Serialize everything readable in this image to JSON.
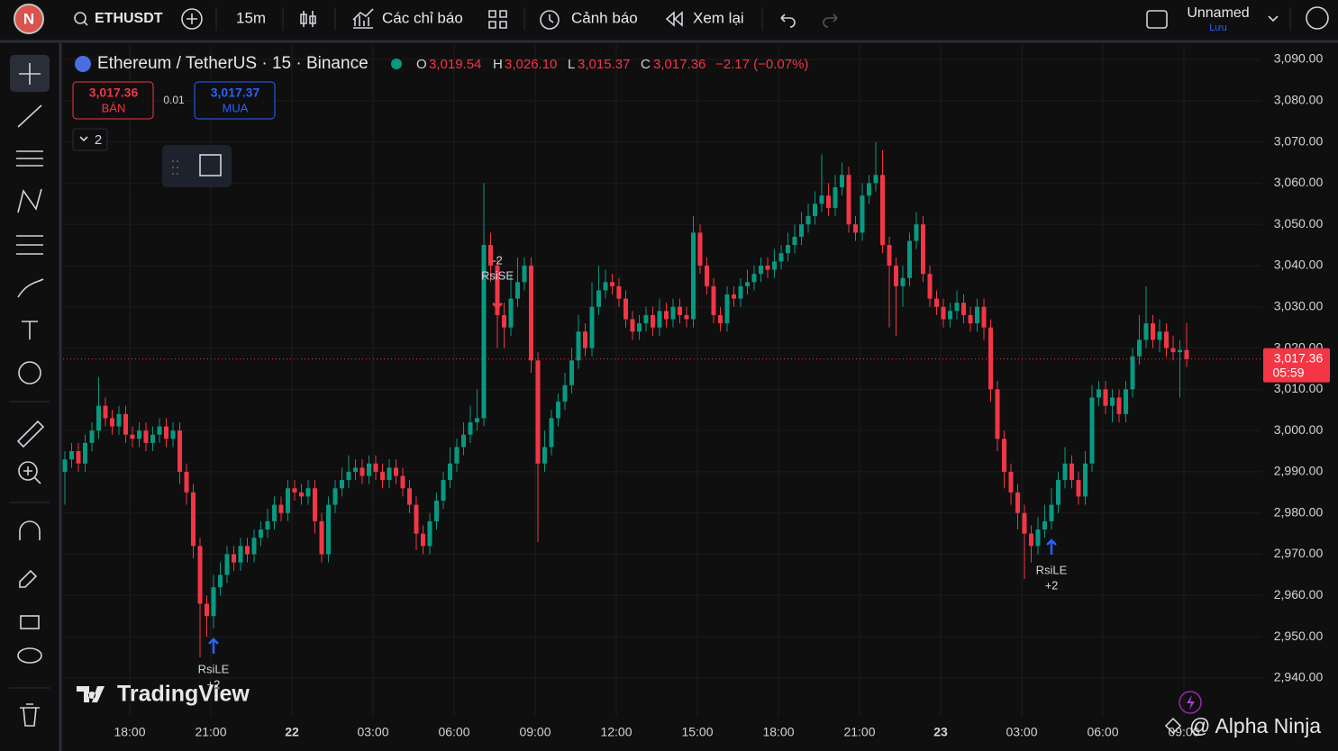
{
  "toolbar": {
    "avatar": "N",
    "symbol": "ETHUSDT",
    "interval": "15m",
    "indicators": "Các chỉ báo",
    "alerts": "Cảnh báo",
    "replay": "Xem lại",
    "layout_name": "Unnamed",
    "save": "Lưu"
  },
  "legend": {
    "title": "Ethereum / TetherUS · 15 · Binance",
    "o_key": "O",
    "o": "3,019.54",
    "h_key": "H",
    "h": "3,026.10",
    "l_key": "L",
    "l": "3,015.37",
    "c_key": "C",
    "c": "3,017.36",
    "change": "−2.17 (−0.07%)"
  },
  "trade": {
    "sell_price": "3,017.36",
    "sell": "BÁN",
    "qty": "0.01",
    "buy_price": "3,017.37",
    "buy": "MUA",
    "collapse": "2"
  },
  "branding": {
    "logo": "TradingView",
    "watermark": "@ Alpha Ninja"
  },
  "chart_data": {
    "type": "candlestick",
    "open": [
      2990,
      2993,
      2995,
      2992,
      2997,
      3000,
      3006,
      3003,
      3001,
      3004,
      2999,
      2998,
      3000,
      2997,
      2999,
      3001,
      2998,
      3000,
      2990,
      2985,
      2972,
      2958,
      2955,
      2962,
      2965,
      2970,
      2968,
      2972,
      2970,
      2974,
      2976,
      2978,
      2982,
      2980,
      2986,
      2985,
      2984,
      2986,
      2978,
      2970,
      2982,
      2986,
      2988,
      2990,
      2991,
      2989,
      2992,
      2990,
      2988,
      2991,
      2989,
      2986,
      2982,
      2975,
      2972,
      2978,
      2983,
      2988,
      2992,
      2996,
      2999,
      3002,
      3003,
      3045,
      3040,
      3028,
      3025,
      3032,
      3036,
      3040,
      3017,
      2992,
      2996,
      3003,
      3007,
      3011,
      3017,
      3024,
      3020,
      3030,
      3034,
      3036,
      3035,
      3032,
      3027,
      3024,
      3026,
      3028,
      3025,
      3029,
      3027,
      3030,
      3028,
      3027,
      3048,
      3040,
      3035,
      3028,
      3026,
      3033,
      3032,
      3035,
      3036,
      3038,
      3040,
      3039,
      3041,
      3043,
      3045,
      3047,
      3050,
      3052,
      3055,
      3057,
      3054,
      3059,
      3062,
      3050,
      3048,
      3057,
      3060,
      3062,
      3045,
      3040,
      3035,
      3037,
      3046,
      3050,
      3038,
      3032,
      3030,
      3027,
      3029,
      3031,
      3028,
      3026,
      3030,
      3025,
      3010,
      2998,
      2990,
      2985,
      2980,
      2975,
      2972,
      2976,
      2978,
      2982,
      2988,
      2992,
      2988,
      2984,
      2992,
      3008,
      3010,
      3006,
      3008,
      3004,
      3010,
      3018,
      3022,
      3026,
      3022,
      3024,
      3020,
      3019,
      3019.54
    ],
    "high": [
      2995,
      2997,
      2997,
      2999,
      3002,
      3013,
      3008,
      3005,
      3006,
      3006,
      3001,
      3002,
      3002,
      3001,
      3003,
      3003,
      3002,
      3002,
      2992,
      2987,
      2974,
      2960,
      2965,
      2968,
      2972,
      2972,
      2974,
      2974,
      2976,
      2978,
      2981,
      2984,
      2984,
      2988,
      2988,
      2987,
      2988,
      2988,
      2980,
      2984,
      2988,
      2991,
      2994,
      2993,
      2993,
      2994,
      2994,
      2992,
      2993,
      2993,
      2991,
      2988,
      2984,
      2977,
      2980,
      2985,
      2990,
      2996,
      2998,
      3002,
      3006,
      3010,
      3060,
      3048,
      3042,
      3031,
      3038,
      3042,
      3042,
      3042,
      3019,
      3000,
      3005,
      3009,
      3014,
      3020,
      3028,
      3026,
      3036,
      3040,
      3039,
      3038,
      3037,
      3034,
      3029,
      3028,
      3030,
      3030,
      3032,
      3031,
      3032,
      3032,
      3030,
      3052,
      3050,
      3042,
      3037,
      3030,
      3035,
      3035,
      3037,
      3039,
      3040,
      3042,
      3042,
      3044,
      3045,
      3048,
      3050,
      3053,
      3055,
      3058,
      3067,
      3060,
      3062,
      3065,
      3064,
      3052,
      3060,
      3062,
      3070,
      3068,
      3047,
      3042,
      3040,
      3048,
      3053,
      3052,
      3040,
      3034,
      3032,
      3031,
      3034,
      3033,
      3030,
      3032,
      3032,
      3027,
      3012,
      3000,
      2992,
      2987,
      2982,
      2977,
      2979,
      2982,
      2986,
      2990,
      2996,
      2994,
      2990,
      2995,
      3011,
      3012,
      3012,
      3010,
      3010,
      3012,
      3020,
      3028,
      3035,
      3028,
      3027,
      3026,
      3023,
      3022,
      3026.1
    ],
    "low": [
      2982,
      2991,
      2990,
      2990,
      2995,
      2998,
      3001,
      2999,
      2999,
      2997,
      2996,
      2996,
      2995,
      2995,
      2997,
      2996,
      2996,
      2987,
      2982,
      2969,
      2945,
      2950,
      2952,
      2960,
      2963,
      2966,
      2966,
      2968,
      2968,
      2972,
      2974,
      2976,
      2978,
      2978,
      2983,
      2982,
      2982,
      2975,
      2968,
      2968,
      2980,
      2984,
      2986,
      2988,
      2987,
      2987,
      2988,
      2986,
      2986,
      2987,
      2984,
      2980,
      2971,
      2970,
      2970,
      2976,
      2981,
      2986,
      2990,
      2994,
      2997,
      3000,
      3001,
      3036,
      3020,
      3020,
      3023,
      3030,
      3034,
      3014,
      2973,
      2990,
      2994,
      3001,
      3005,
      3009,
      3015,
      3018,
      3018,
      3028,
      3032,
      3033,
      3030,
      3025,
      3022,
      3022,
      3024,
      3023,
      3023,
      3025,
      3025,
      3026,
      3025,
      3025,
      3038,
      3033,
      3026,
      3024,
      3024,
      3030,
      3030,
      3033,
      3034,
      3036,
      3037,
      3037,
      3039,
      3041,
      3043,
      3045,
      3048,
      3050,
      3053,
      3052,
      3052,
      3057,
      3048,
      3046,
      3046,
      3055,
      3058,
      3043,
      3025,
      3023,
      3030,
      3035,
      3044,
      3036,
      3030,
      3028,
      3025,
      3025,
      3027,
      3026,
      3024,
      3024,
      3022,
      3007,
      2995,
      2986,
      2982,
      2976,
      2964,
      2968,
      2970,
      2974,
      2976,
      2980,
      2986,
      2986,
      2982,
      2982,
      2990,
      3006,
      3004,
      3002,
      3002,
      3002,
      3008,
      3016,
      3020,
      3020,
      3019,
      3018,
      3017,
      3008,
      3015.37
    ],
    "close": [
      2993,
      2995,
      2992,
      2997,
      3000,
      3006,
      3003,
      3001,
      3004,
      2999,
      2998,
      3000,
      2997,
      2999,
      3001,
      2998,
      3000,
      2990,
      2985,
      2972,
      2958,
      2955,
      2962,
      2965,
      2970,
      2968,
      2972,
      2970,
      2974,
      2976,
      2978,
      2982,
      2980,
      2986,
      2985,
      2984,
      2986,
      2978,
      2970,
      2982,
      2986,
      2988,
      2990,
      2991,
      2989,
      2992,
      2990,
      2988,
      2991,
      2989,
      2986,
      2982,
      2975,
      2972,
      2978,
      2983,
      2988,
      2992,
      2996,
      2999,
      3002,
      3003,
      3045,
      3040,
      3028,
      3025,
      3032,
      3036,
      3040,
      3017,
      2992,
      2996,
      3003,
      3007,
      3011,
      3017,
      3024,
      3020,
      3030,
      3034,
      3036,
      3035,
      3032,
      3027,
      3024,
      3026,
      3028,
      3025,
      3029,
      3027,
      3030,
      3028,
      3027,
      3048,
      3040,
      3035,
      3028,
      3026,
      3033,
      3032,
      3035,
      3036,
      3038,
      3040,
      3039,
      3041,
      3043,
      3045,
      3047,
      3050,
      3052,
      3055,
      3057,
      3054,
      3059,
      3062,
      3050,
      3048,
      3057,
      3060,
      3062,
      3045,
      3040,
      3035,
      3037,
      3046,
      3050,
      3038,
      3032,
      3030,
      3027,
      3029,
      3031,
      3028,
      3026,
      3030,
      3025,
      3010,
      2998,
      2990,
      2985,
      2980,
      2975,
      2972,
      2976,
      2978,
      2982,
      2988,
      2992,
      2988,
      2984,
      2992,
      3008,
      3010,
      3006,
      3008,
      3004,
      3010,
      3018,
      3022,
      3026,
      3022,
      3024,
      3020,
      3019,
      3019.54,
      3017.36
    ],
    "colors": {
      "up": "#089981",
      "down": "#f23645"
    },
    "ylim": [
      2930.8,
      3093.5
    ],
    "yticks": [
      {
        "value": 3090,
        "label": "3,090.00"
      },
      {
        "value": 3080,
        "label": "3,080.00"
      },
      {
        "value": 3070,
        "label": "3,070.00"
      },
      {
        "value": 3060,
        "label": "3,060.00"
      },
      {
        "value": 3050,
        "label": "3,050.00"
      },
      {
        "value": 3040,
        "label": "3,040.00"
      },
      {
        "value": 3030,
        "label": "3,030.00"
      },
      {
        "value": 3020,
        "label": "3,020.00"
      },
      {
        "value": 3010,
        "label": "3,010.00"
      },
      {
        "value": 3000,
        "label": "3,000.00"
      },
      {
        "value": 2990,
        "label": "2,990.00"
      },
      {
        "value": 2980,
        "label": "2,980.00"
      },
      {
        "value": 2970,
        "label": "2,970.00"
      },
      {
        "value": 2960,
        "label": "2,960.00"
      },
      {
        "value": 2950,
        "label": "2,950.00"
      },
      {
        "value": 2940,
        "label": "2,940.00"
      }
    ],
    "xtick_labels": [
      "18:00",
      "21:00",
      "22",
      "03:00",
      "06:00",
      "09:00",
      "12:00",
      "15:00",
      "18:00",
      "21:00",
      "23",
      "03:00",
      "06:00",
      "09:00"
    ],
    "last_price": {
      "value": 3017.36,
      "label": "3,017.36"
    },
    "countdown": "05:59",
    "signals": [
      {
        "text": "RsiLE",
        "qty": "+2",
        "color": "#2962ff"
      },
      {
        "text": "RsiSE",
        "qty": "-2",
        "color": "#f23645"
      },
      {
        "text": "RsiLE",
        "qty": "+2",
        "color": "#2962ff"
      }
    ]
  }
}
